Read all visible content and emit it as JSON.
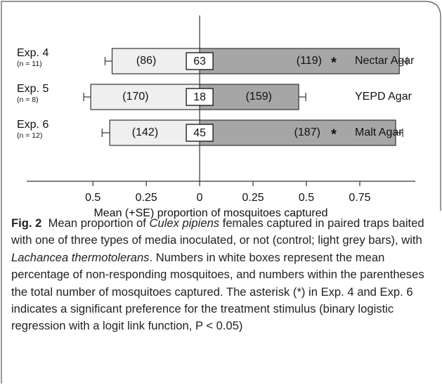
{
  "chart_data": {
    "type": "bar",
    "categories": [
      "Exp. 4",
      "Exp. 5",
      "Exp. 6"
    ],
    "sample_sizes": [
      "(n = 11)",
      "(n = 8)",
      "(n = 12)"
    ],
    "media": [
      "Nectar Agar",
      "YEPD Agar",
      "Malt Agar"
    ],
    "significance": [
      "*",
      null,
      "*"
    ],
    "non_responding": [
      63,
      18,
      45
    ],
    "series": [
      {
        "name": "control",
        "color": "#efefef",
        "values": [
          -0.41,
          -0.51,
          -0.421
        ],
        "errors": [
          0.033,
          0.033,
          0.036
        ],
        "count_labels": [
          "(86)",
          "(170)",
          "(142)"
        ]
      },
      {
        "name": "treatment",
        "color": "#a6a6a6",
        "values": [
          0.935,
          0.464,
          0.918
        ],
        "errors": [
          0.036,
          0.033,
          0.033
        ],
        "count_labels": [
          "(119)",
          "(159)",
          "(187)"
        ]
      }
    ],
    "xlabel": "Mean (+SE) proportion of mosquitoes captured",
    "xlim": [
      -0.81,
      1.01
    ],
    "xticks": [
      {
        "value": -0.5,
        "label": "0.5"
      },
      {
        "value": -0.25,
        "label": "0.25"
      },
      0,
      0.25,
      0.5,
      0.75
    ]
  },
  "caption": {
    "label": "Fig. 2",
    "runs": [
      {
        "text": "Mean proportion of ",
        "italic": false
      },
      {
        "text": "Culex pipiens",
        "italic": true
      },
      {
        "text": " females captured in paired traps baited with one of three types of media inoculated, or not (control; light grey bars), with ",
        "italic": false
      },
      {
        "text": "Lachancea thermotolerans",
        "italic": true
      },
      {
        "text": ". Numbers in white boxes represent the mean percentage of non-responding mosquitoes, and numbers within the parentheses the total number of mosquitoes captured. The asterisk (*) in Exp. 4 and Exp. 6 indicates a significant preference for the treatment stimulus (binary logistic regression with a logit link function, P < 0.05)",
        "italic": false
      }
    ]
  }
}
